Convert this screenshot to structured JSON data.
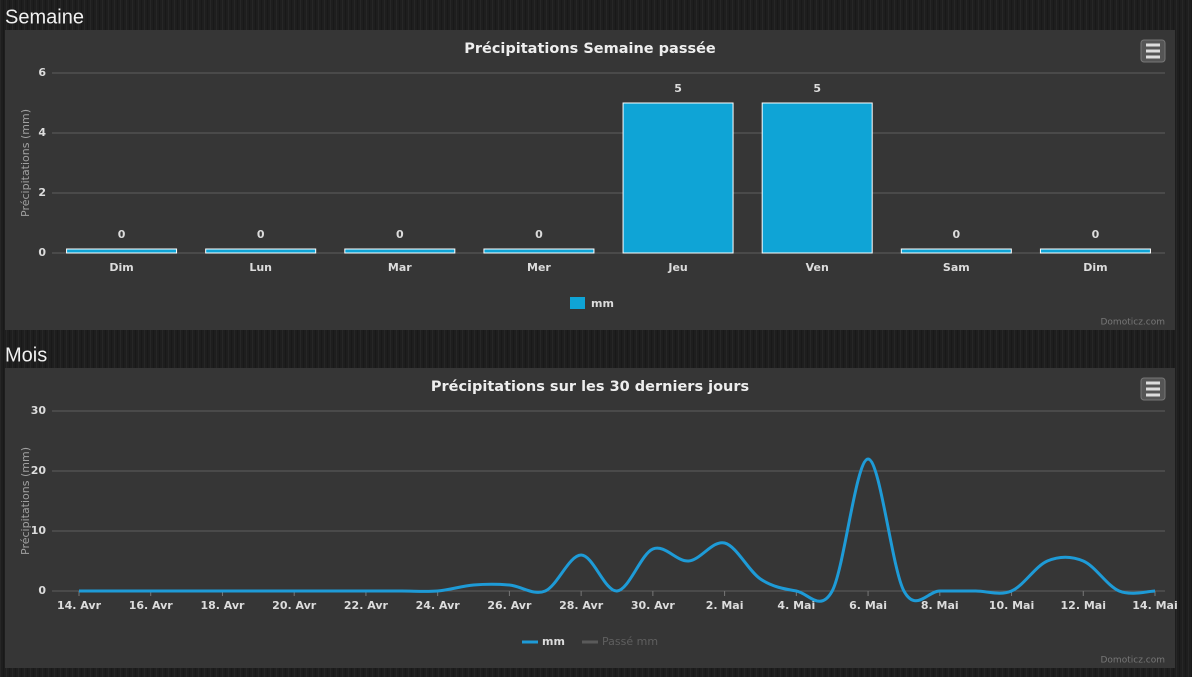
{
  "sections": [
    "Semaine",
    "Mois"
  ],
  "credits": "Domoticz.com",
  "chart_data": [
    {
      "type": "bar",
      "title": "Précipitations Semaine passée",
      "y_label": "Précipitations (mm)",
      "categories": [
        "Dim",
        "Lun",
        "Mar",
        "Mer",
        "Jeu",
        "Ven",
        "Sam",
        "Dim"
      ],
      "series": [
        {
          "name": "mm",
          "color": "#0fa4d6",
          "values": [
            0,
            0,
            0,
            0,
            5,
            5,
            0,
            0
          ]
        }
      ],
      "ylim": [
        0,
        6
      ],
      "yticks": [
        0,
        2,
        4,
        6
      ],
      "grid": true,
      "data_labels": true,
      "legend": "bottom"
    },
    {
      "type": "line",
      "title": "Précipitations sur les 30 derniers jours",
      "y_label": "Précipitations (mm)",
      "categories": [
        "14. Avr",
        null,
        "16. Avr",
        null,
        "18. Avr",
        null,
        "20. Avr",
        null,
        "22. Avr",
        null,
        "24. Avr",
        null,
        "26. Avr",
        null,
        "28. Avr",
        null,
        "30. Avr",
        null,
        "2. Mai",
        null,
        "4. Mai",
        null,
        "6. Mai",
        null,
        "8. Mai",
        null,
        "10. Mai",
        null,
        "12. Mai",
        null,
        "14. Mai"
      ],
      "series": [
        {
          "name": "mm",
          "color": "#1e9bd7",
          "values": [
            0,
            0,
            0,
            0,
            0,
            0,
            0,
            0,
            0,
            0,
            0,
            1,
            1,
            0,
            6,
            0,
            7,
            5,
            8,
            2,
            0,
            0,
            22,
            0,
            0,
            0,
            0,
            5,
            5,
            0,
            0
          ]
        },
        {
          "name": "Passé mm",
          "color": "#666666",
          "visible": false
        }
      ],
      "ylim": [
        0,
        30
      ],
      "yticks": [
        0,
        10,
        20,
        30
      ],
      "grid": true,
      "smooth": true,
      "legend": "bottom"
    }
  ]
}
